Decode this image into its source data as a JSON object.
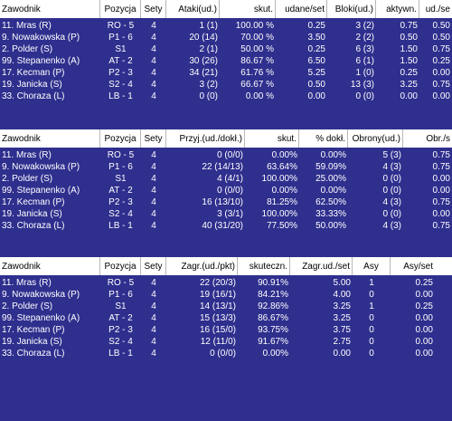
{
  "t1": {
    "headers": [
      "Zawodnik",
      "Pozycja",
      "Sety",
      "Ataki(ud.)",
      "skut.",
      "udane/set",
      "Bloki(ud.)",
      "aktywn.",
      "ud./se"
    ],
    "rows": [
      [
        "11. Mras (R)",
        "RO - 5",
        "4",
        "1 (1)",
        "100.00 %",
        "0.25",
        "3 (2)",
        "0.75",
        "0.50"
      ],
      [
        "9. Nowakowska (P)",
        "P1 - 6",
        "4",
        "20 (14)",
        "70.00 %",
        "3.50",
        "2 (2)",
        "0.50",
        "0.50"
      ],
      [
        "2. Polder (S)",
        "S1",
        "4",
        "2 (1)",
        "50.00 %",
        "0.25",
        "6 (3)",
        "1.50",
        "0.75"
      ],
      [
        "99. Stepanenko (A)",
        "AT - 2",
        "4",
        "30 (26)",
        "86.67 %",
        "6.50",
        "6 (1)",
        "1.50",
        "0.25"
      ],
      [
        "17. Kecman (P)",
        "P2 - 3",
        "4",
        "34 (21)",
        "61.76 %",
        "5.25",
        "1 (0)",
        "0.25",
        "0.00"
      ],
      [
        "19. Janicka (S)",
        "S2 - 4",
        "4",
        "3 (2)",
        "66.67 %",
        "0.50",
        "13 (3)",
        "3.25",
        "0.75"
      ],
      [
        "33. Choraza (L)",
        "LB - 1",
        "4",
        "0 (0)",
        "0.00 %",
        "0.00",
        "0 (0)",
        "0.00",
        "0.00"
      ]
    ]
  },
  "t2": {
    "headers": [
      "Zawodnik",
      "Pozycja",
      "Sety",
      "Przyj.(ud./dokł.)",
      "skut.",
      "% dokł.",
      "Obrony(ud.)",
      "Obr./s"
    ],
    "rows": [
      [
        "11. Mras (R)",
        "RO - 5",
        "4",
        "0 (0/0)",
        "0.00%",
        "0.00%",
        "5 (3)",
        "0.75"
      ],
      [
        "9. Nowakowska (P)",
        "P1 - 6",
        "4",
        "22 (14/13)",
        "63.64%",
        "59.09%",
        "4 (3)",
        "0.75"
      ],
      [
        "2. Polder (S)",
        "S1",
        "4",
        "4 (4/1)",
        "100.00%",
        "25.00%",
        "0 (0)",
        "0.00"
      ],
      [
        "99. Stepanenko (A)",
        "AT - 2",
        "4",
        "0 (0/0)",
        "0.00%",
        "0.00%",
        "0 (0)",
        "0.00"
      ],
      [
        "17. Kecman (P)",
        "P2 - 3",
        "4",
        "16 (13/10)",
        "81.25%",
        "62.50%",
        "4 (3)",
        "0.75"
      ],
      [
        "19. Janicka (S)",
        "S2 - 4",
        "4",
        "3 (3/1)",
        "100.00%",
        "33.33%",
        "0 (0)",
        "0.00"
      ],
      [
        "33. Choraza (L)",
        "LB - 1",
        "4",
        "40 (31/20)",
        "77.50%",
        "50.00%",
        "4 (3)",
        "0.75"
      ]
    ]
  },
  "t3": {
    "headers": [
      "Zawodnik",
      "Pozycja",
      "Sety",
      "Zagr.(ud./pkt)",
      "skuteczn.",
      "Zagr.ud./set",
      "Asy",
      "Asy/set"
    ],
    "rows": [
      [
        "11. Mras (R)",
        "RO - 5",
        "4",
        "22 (20/3)",
        "90.91%",
        "5.00",
        "1",
        "0.25"
      ],
      [
        "9. Nowakowska (P)",
        "P1 - 6",
        "4",
        "19 (16/1)",
        "84.21%",
        "4.00",
        "0",
        "0.00"
      ],
      [
        "2. Polder (S)",
        "S1",
        "4",
        "14 (13/1)",
        "92.86%",
        "3.25",
        "1",
        "0.25"
      ],
      [
        "99. Stepanenko (A)",
        "AT - 2",
        "4",
        "15 (13/3)",
        "86.67%",
        "3.25",
        "0",
        "0.00"
      ],
      [
        "17. Kecman (P)",
        "P2 - 3",
        "4",
        "16 (15/0)",
        "93.75%",
        "3.75",
        "0",
        "0.00"
      ],
      [
        "19. Janicka (S)",
        "S2 - 4",
        "4",
        "12 (11/0)",
        "91.67%",
        "2.75",
        "0",
        "0.00"
      ],
      [
        "33. Choraza (L)",
        "LB - 1",
        "4",
        "0 (0/0)",
        "0.00%",
        "0.00",
        "0",
        "0.00"
      ]
    ]
  }
}
